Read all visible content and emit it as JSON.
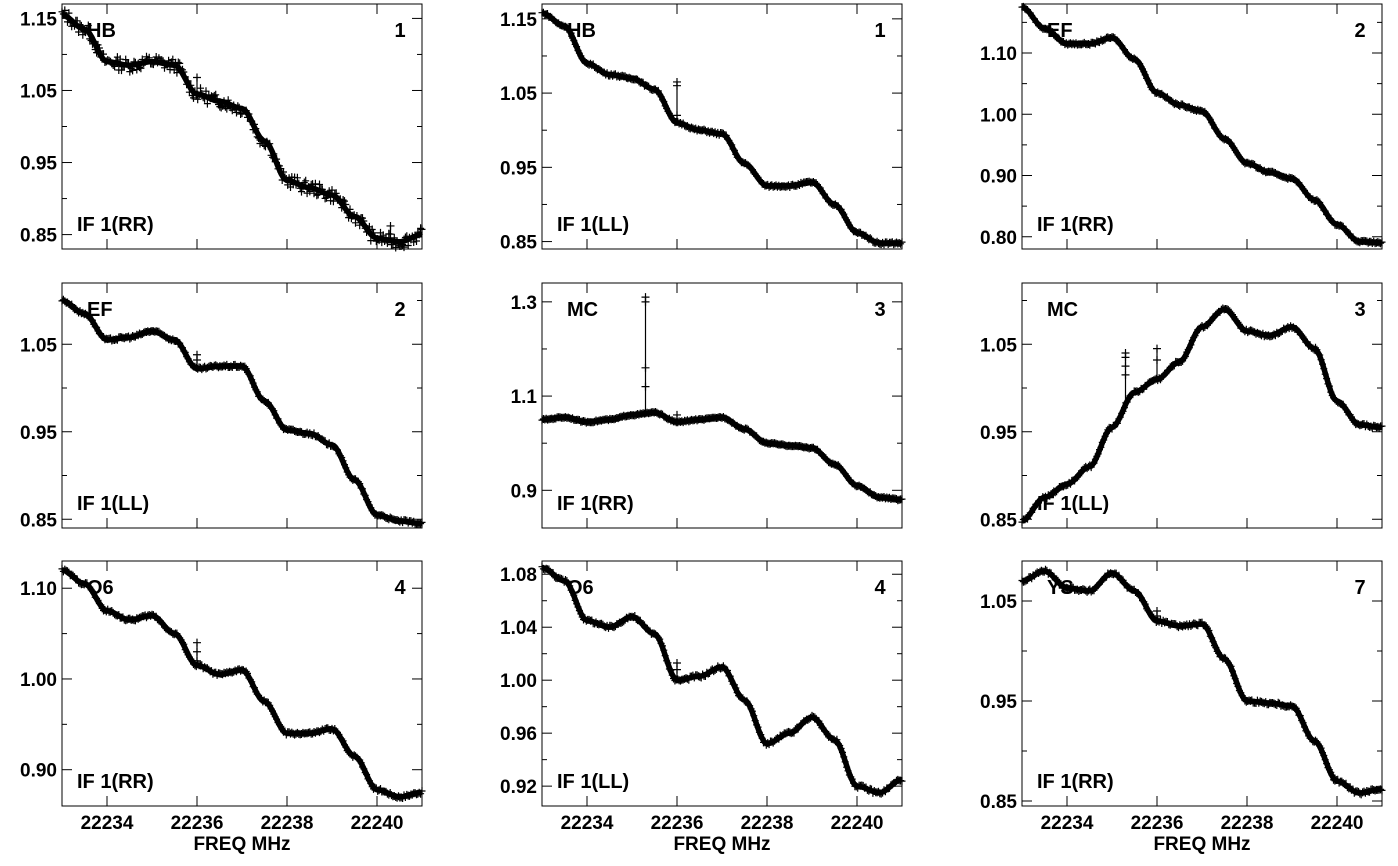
{
  "figure": {
    "xlabel": "FREQ MHz"
  },
  "chart_data": [
    {
      "type": "line",
      "antenna": "HB",
      "ant_num": "1",
      "if_label": "IF 1(RR)",
      "xlabel": "",
      "xlim": [
        22233.0,
        22241.0
      ],
      "xticks": [
        22234,
        22236,
        22238,
        22240
      ],
      "xtick_labels": [
        "",
        "",
        "",
        ""
      ],
      "ylim": [
        0.83,
        1.17
      ],
      "yticks": [
        0.85,
        0.95,
        1.05,
        1.15
      ],
      "ytick_labels": [
        "0.85",
        "0.95",
        "1.05",
        "1.15"
      ],
      "noise": 0.009,
      "series": [
        {
          "x": [
            22233.0,
            22233.5,
            22234.0,
            22234.5,
            22235.0,
            22235.5,
            22236.0,
            22236.5,
            22237.0,
            22237.5,
            22238.0,
            22238.5,
            22239.0,
            22239.5,
            22240.0,
            22240.5,
            22241.0
          ],
          "y": [
            1.155,
            1.135,
            1.09,
            1.085,
            1.09,
            1.085,
            1.045,
            1.035,
            1.025,
            0.98,
            0.925,
            0.915,
            0.905,
            0.875,
            0.845,
            0.84,
            0.85
          ]
        }
      ],
      "outliers": [
        {
          "x": 22236.0,
          "y": [
            1.045,
            1.068
          ]
        },
        {
          "x": 22240.3,
          "y": [
            0.862
          ]
        }
      ]
    },
    {
      "type": "line",
      "antenna": "HB",
      "ant_num": "1",
      "if_label": "IF 1(LL)",
      "xlabel": "",
      "xlim": [
        22233.0,
        22241.0
      ],
      "xticks": [
        22234,
        22236,
        22238,
        22240
      ],
      "xtick_labels": [
        "",
        "",
        "",
        ""
      ],
      "ylim": [
        0.84,
        1.17
      ],
      "yticks": [
        0.85,
        0.95,
        1.05,
        1.15
      ],
      "ytick_labels": [
        "0.85",
        "0.95",
        "1.05",
        "1.15"
      ],
      "noise": 0.0015,
      "series": [
        {
          "x": [
            22233.0,
            22233.5,
            22234.0,
            22234.5,
            22235.0,
            22235.5,
            22236.0,
            22236.5,
            22237.0,
            22237.5,
            22238.0,
            22238.5,
            22239.0,
            22239.5,
            22240.0,
            22240.5,
            22241.0
          ],
          "y": [
            1.158,
            1.14,
            1.09,
            1.075,
            1.07,
            1.055,
            1.01,
            1.0,
            0.995,
            0.955,
            0.925,
            0.925,
            0.93,
            0.9,
            0.862,
            0.848,
            0.848
          ]
        }
      ],
      "outliers": [
        {
          "x": 22236.0,
          "y": [
            1.02,
            1.06,
            1.065
          ]
        }
      ]
    },
    {
      "type": "line",
      "antenna": "EF",
      "ant_num": "2",
      "if_label": "IF 1(RR)",
      "xlabel": "",
      "xlim": [
        22233.0,
        22241.0
      ],
      "xticks": [
        22234,
        22236,
        22238,
        22240
      ],
      "xtick_labels": [
        "",
        "",
        "",
        ""
      ],
      "ylim": [
        0.78,
        1.18
      ],
      "yticks": [
        0.8,
        0.9,
        1.0,
        1.1
      ],
      "ytick_labels": [
        "0.80",
        "0.90",
        "1.00",
        "1.10"
      ],
      "noise": 0.0015,
      "series": [
        {
          "x": [
            22233.0,
            22233.5,
            22234.0,
            22234.5,
            22235.0,
            22235.5,
            22236.0,
            22236.5,
            22237.0,
            22237.5,
            22238.0,
            22238.5,
            22239.0,
            22239.5,
            22240.0,
            22240.5,
            22241.0
          ],
          "y": [
            1.175,
            1.14,
            1.115,
            1.115,
            1.125,
            1.09,
            1.035,
            1.015,
            1.005,
            0.96,
            0.92,
            0.905,
            0.895,
            0.86,
            0.82,
            0.792,
            0.79
          ]
        }
      ],
      "outliers": []
    },
    {
      "type": "line",
      "antenna": "EF",
      "ant_num": "2",
      "if_label": "IF 1(LL)",
      "xlabel": "",
      "xlim": [
        22233.0,
        22241.0
      ],
      "xticks": [
        22234,
        22236,
        22238,
        22240
      ],
      "xtick_labels": [
        "",
        "",
        "",
        ""
      ],
      "ylim": [
        0.84,
        1.12
      ],
      "yticks": [
        0.85,
        0.95,
        1.05
      ],
      "ytick_labels": [
        "0.85",
        "0.95",
        "1.05"
      ],
      "noise": 0.0015,
      "series": [
        {
          "x": [
            22233.0,
            22233.5,
            22234.0,
            22234.5,
            22235.0,
            22235.5,
            22236.0,
            22236.5,
            22237.0,
            22237.5,
            22238.0,
            22238.5,
            22239.0,
            22239.5,
            22240.0,
            22240.5,
            22241.0
          ],
          "y": [
            1.1,
            1.085,
            1.055,
            1.058,
            1.065,
            1.055,
            1.022,
            1.025,
            1.025,
            0.985,
            0.952,
            0.948,
            0.935,
            0.895,
            0.855,
            0.848,
            0.845
          ]
        }
      ],
      "outliers": [
        {
          "x": 22236.0,
          "y": [
            1.032,
            1.038
          ]
        }
      ]
    },
    {
      "type": "line",
      "antenna": "MC",
      "ant_num": "3",
      "if_label": "IF 1(RR)",
      "xlabel": "",
      "xlim": [
        22233.0,
        22241.0
      ],
      "xticks": [
        22234,
        22236,
        22238,
        22240
      ],
      "xtick_labels": [
        "",
        "",
        "",
        ""
      ],
      "ylim": [
        0.82,
        1.34
      ],
      "yticks": [
        0.9,
        1.1,
        1.3
      ],
      "ytick_labels": [
        "0.9",
        "1.1",
        "1.3"
      ],
      "noise": 0.0015,
      "series": [
        {
          "x": [
            22233.0,
            22233.5,
            22234.0,
            22234.5,
            22235.0,
            22235.5,
            22236.0,
            22236.5,
            22237.0,
            22237.5,
            22238.0,
            22238.5,
            22239.0,
            22239.5,
            22240.0,
            22240.5,
            22241.0
          ],
          "y": [
            1.05,
            1.055,
            1.045,
            1.05,
            1.06,
            1.065,
            1.045,
            1.05,
            1.055,
            1.03,
            1.0,
            0.995,
            0.99,
            0.955,
            0.91,
            0.885,
            0.88
          ]
        }
      ],
      "outliers": [
        {
          "x": 22235.3,
          "y": [
            1.12,
            1.16,
            1.3,
            1.31
          ]
        },
        {
          "x": 22236.0,
          "y": [
            1.06
          ]
        }
      ]
    },
    {
      "type": "line",
      "antenna": "MC",
      "ant_num": "3",
      "if_label": "IF 1(LL)",
      "xlabel": "",
      "xlim": [
        22233.0,
        22241.0
      ],
      "xticks": [
        22234,
        22236,
        22238,
        22240
      ],
      "xtick_labels": [
        "",
        "",
        "",
        ""
      ],
      "ylim": [
        0.84,
        1.12
      ],
      "yticks": [
        0.85,
        0.95,
        1.05
      ],
      "ytick_labels": [
        "0.85",
        "0.95",
        "1.05"
      ],
      "noise": 0.0015,
      "series": [
        {
          "x": [
            22233.0,
            22233.5,
            22234.0,
            22234.5,
            22235.0,
            22235.5,
            22236.0,
            22236.5,
            22237.0,
            22237.5,
            22238.0,
            22238.5,
            22239.0,
            22239.5,
            22240.0,
            22240.5,
            22241.0
          ],
          "y": [
            0.848,
            0.875,
            0.89,
            0.91,
            0.955,
            0.995,
            1.01,
            1.03,
            1.07,
            1.09,
            1.065,
            1.06,
            1.07,
            1.045,
            0.985,
            0.958,
            0.955
          ]
        }
      ],
      "outliers": [
        {
          "x": 22235.3,
          "y": [
            1.015,
            1.025,
            1.035,
            1.04
          ]
        },
        {
          "x": 22236.0,
          "y": [
            1.032,
            1.045
          ]
        }
      ]
    },
    {
      "type": "line",
      "antenna": "O6",
      "ant_num": "4",
      "if_label": "IF 1(RR)",
      "xlabel": "FREQ MHz",
      "xlim": [
        22233.0,
        22241.0
      ],
      "xticks": [
        22234,
        22236,
        22238,
        22240
      ],
      "xtick_labels": [
        "22234",
        "22236",
        "22238",
        "22240"
      ],
      "ylim": [
        0.86,
        1.13
      ],
      "yticks": [
        0.9,
        1.0,
        1.1
      ],
      "ytick_labels": [
        "0.90",
        "1.00",
        "1.10"
      ],
      "noise": 0.0015,
      "series": [
        {
          "x": [
            22233.0,
            22233.5,
            22234.0,
            22234.5,
            22235.0,
            22235.5,
            22236.0,
            22236.5,
            22237.0,
            22237.5,
            22238.0,
            22238.5,
            22239.0,
            22239.5,
            22240.0,
            22240.5,
            22241.0
          ],
          "y": [
            1.12,
            1.105,
            1.075,
            1.065,
            1.07,
            1.05,
            1.015,
            1.005,
            1.01,
            0.975,
            0.94,
            0.94,
            0.945,
            0.915,
            0.878,
            0.87,
            0.875
          ]
        }
      ],
      "outliers": [
        {
          "x": 22236.0,
          "y": [
            1.02,
            1.03,
            1.04
          ]
        }
      ]
    },
    {
      "type": "line",
      "antenna": "O6",
      "ant_num": "4",
      "if_label": "IF 1(LL)",
      "xlabel": "FREQ MHz",
      "xlim": [
        22233.0,
        22241.0
      ],
      "xticks": [
        22234,
        22236,
        22238,
        22240
      ],
      "xtick_labels": [
        "22234",
        "22236",
        "22238",
        "22240"
      ],
      "ylim": [
        0.905,
        1.09
      ],
      "yticks": [
        0.92,
        0.96,
        1.0,
        1.04,
        1.08
      ],
      "ytick_labels": [
        "0.92",
        "0.96",
        "1.00",
        "1.04",
        "1.08"
      ],
      "noise": 0.0012,
      "series": [
        {
          "x": [
            22233.0,
            22233.5,
            22234.0,
            22234.5,
            22235.0,
            22235.5,
            22236.0,
            22236.5,
            22237.0,
            22237.5,
            22238.0,
            22238.5,
            22239.0,
            22239.5,
            22240.0,
            22240.5,
            22241.0
          ],
          "y": [
            1.085,
            1.075,
            1.045,
            1.04,
            1.048,
            1.035,
            1.0,
            1.003,
            1.01,
            0.985,
            0.952,
            0.96,
            0.972,
            0.955,
            0.92,
            0.915,
            0.925
          ]
        }
      ],
      "outliers": [
        {
          "x": 22236.0,
          "y": [
            1.008,
            1.013
          ]
        }
      ]
    },
    {
      "type": "line",
      "antenna": "YS",
      "ant_num": "7",
      "if_label": "IF 1(RR)",
      "xlabel": "FREQ MHz",
      "xlim": [
        22233.0,
        22241.0
      ],
      "xticks": [
        22234,
        22236,
        22238,
        22240
      ],
      "xtick_labels": [
        "22234",
        "22236",
        "22238",
        "22240"
      ],
      "ylim": [
        0.845,
        1.09
      ],
      "yticks": [
        0.85,
        0.95,
        1.05
      ],
      "ytick_labels": [
        "0.85",
        "0.95",
        "1.05"
      ],
      "noise": 0.0015,
      "series": [
        {
          "x": [
            22233.0,
            22233.5,
            22234.0,
            22234.5,
            22235.0,
            22235.5,
            22236.0,
            22236.5,
            22237.0,
            22237.5,
            22238.0,
            22238.5,
            22239.0,
            22239.5,
            22240.0,
            22240.5,
            22241.0
          ],
          "y": [
            1.07,
            1.08,
            1.063,
            1.06,
            1.078,
            1.06,
            1.03,
            1.025,
            1.027,
            0.992,
            0.95,
            0.948,
            0.945,
            0.91,
            0.87,
            0.858,
            0.862
          ]
        }
      ],
      "outliers": [
        {
          "x": 22236.0,
          "y": [
            1.035,
            1.04
          ]
        }
      ]
    }
  ]
}
